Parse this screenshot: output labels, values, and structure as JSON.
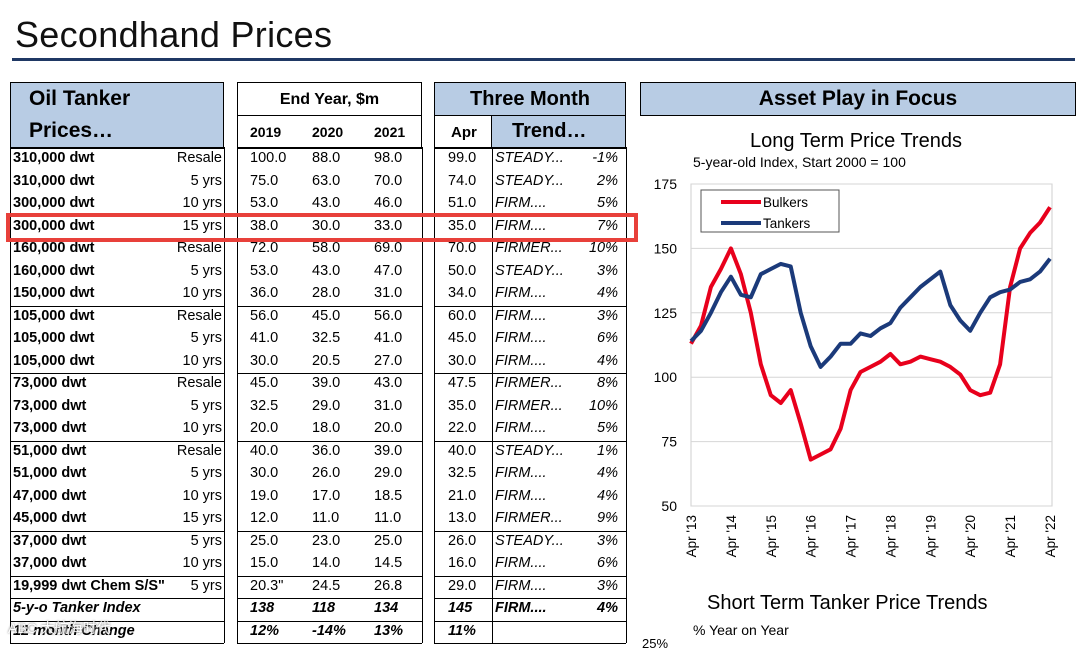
{
  "page": {
    "title": "Secondhand Prices"
  },
  "table": {
    "header_left_line1": "Oil Tanker",
    "header_left_line2": "Prices…",
    "header_end_year": "End Year, $m",
    "header_three_month": "Three Month",
    "col_2019": "2019",
    "col_2020": "2020",
    "col_2021": "2021",
    "col_apr": "Apr",
    "col_trend": "Trend…",
    "rows": [
      {
        "name": "310,000 dwt",
        "age": "Resale",
        "y2019": "100.0",
        "y2020": "88.0",
        "y2021": "98.0",
        "apr": "99.0",
        "trend": "STEADY...",
        "chg": "-1%"
      },
      {
        "name": "310,000 dwt",
        "age": "5 yrs",
        "y2019": "75.0",
        "y2020": "63.0",
        "y2021": "70.0",
        "apr": "74.0",
        "trend": "STEADY...",
        "chg": "2%"
      },
      {
        "name": "300,000 dwt",
        "age": "10 yrs",
        "y2019": "53.0",
        "y2020": "43.0",
        "y2021": "46.0",
        "apr": "51.0",
        "trend": "FIRM....",
        "chg": "5%"
      },
      {
        "name": "300,000 dwt",
        "age": "15 yrs",
        "y2019": "38.0",
        "y2020": "30.0",
        "y2021": "33.0",
        "apr": "35.0",
        "trend": "FIRM....",
        "chg": "7%"
      },
      {
        "name": "160,000 dwt",
        "age": "Resale",
        "y2019": "72.0",
        "y2020": "58.0",
        "y2021": "69.0",
        "apr": "70.0",
        "trend": "FIRMER...",
        "chg": "10%"
      },
      {
        "name": "160,000 dwt",
        "age": "5 yrs",
        "y2019": "53.0",
        "y2020": "43.0",
        "y2021": "47.0",
        "apr": "50.0",
        "trend": "STEADY...",
        "chg": "3%"
      },
      {
        "name": "150,000 dwt",
        "age": "10 yrs",
        "y2019": "36.0",
        "y2020": "28.0",
        "y2021": "31.0",
        "apr": "34.0",
        "trend": "FIRM....",
        "chg": "4%"
      },
      {
        "name": "105,000 dwt",
        "age": "Resale",
        "y2019": "56.0",
        "y2020": "45.0",
        "y2021": "56.0",
        "apr": "60.0",
        "trend": "FIRM....",
        "chg": "3%"
      },
      {
        "name": "105,000 dwt",
        "age": "5 yrs",
        "y2019": "41.0",
        "y2020": "32.5",
        "y2021": "41.0",
        "apr": "45.0",
        "trend": "FIRM....",
        "chg": "6%"
      },
      {
        "name": "105,000 dwt",
        "age": "10 yrs",
        "y2019": "30.0",
        "y2020": "20.5",
        "y2021": "27.0",
        "apr": "30.0",
        "trend": "FIRM....",
        "chg": "4%"
      },
      {
        "name": "73,000 dwt",
        "age": "Resale",
        "y2019": "45.0",
        "y2020": "39.0",
        "y2021": "43.0",
        "apr": "47.5",
        "trend": "FIRMER...",
        "chg": "8%"
      },
      {
        "name": "73,000 dwt",
        "age": "5 yrs",
        "y2019": "32.5",
        "y2020": "29.0",
        "y2021": "31.0",
        "apr": "35.0",
        "trend": "FIRMER...",
        "chg": "10%"
      },
      {
        "name": "73,000 dwt",
        "age": "10 yrs",
        "y2019": "20.0",
        "y2020": "18.0",
        "y2021": "20.0",
        "apr": "22.0",
        "trend": "FIRM....",
        "chg": "5%"
      },
      {
        "name": "51,000 dwt",
        "age": "Resale",
        "y2019": "40.0",
        "y2020": "36.0",
        "y2021": "39.0",
        "apr": "40.0",
        "trend": "STEADY...",
        "chg": "1%"
      },
      {
        "name": "51,000 dwt",
        "age": "5 yrs",
        "y2019": "30.0",
        "y2020": "26.0",
        "y2021": "29.0",
        "apr": "32.5",
        "trend": "FIRM....",
        "chg": "4%"
      },
      {
        "name": "47,000 dwt",
        "age": "10 yrs",
        "y2019": "19.0",
        "y2020": "17.0",
        "y2021": "18.5",
        "apr": "21.0",
        "trend": "FIRM....",
        "chg": "4%"
      },
      {
        "name": "45,000 dwt",
        "age": "15 yrs",
        "y2019": "12.0",
        "y2020": "11.0",
        "y2021": "11.0",
        "apr": "13.0",
        "trend": "FIRMER...",
        "chg": "9%"
      },
      {
        "name": "37,000 dwt",
        "age": "5 yrs",
        "y2019": "25.0",
        "y2020": "23.0",
        "y2021": "25.0",
        "apr": "26.0",
        "trend": "STEADY...",
        "chg": "3%"
      },
      {
        "name": "37,000 dwt",
        "age": "10 yrs",
        "y2019": "15.0",
        "y2020": "14.0",
        "y2021": "14.5",
        "apr": "16.0",
        "trend": "FIRM....",
        "chg": "6%"
      },
      {
        "name": "19,999 dwt Chem S/S\"",
        "age": "5 yrs",
        "y2019": "20.3\"",
        "y2020": "24.5",
        "y2021": "26.8",
        "apr": "29.0",
        "trend": "FIRM....",
        "chg": "3%"
      }
    ],
    "index_row": {
      "name": "5-y-o Tanker Index",
      "y2019": "138",
      "y2020": "118",
      "y2021": "134",
      "apr": "145",
      "trend": "FIRM....",
      "chg": "4%"
    },
    "change_row": {
      "name": "12 month Change",
      "y2019": "12%",
      "y2020": "-14%",
      "y2021": "13%",
      "apr": "11%"
    }
  },
  "focus": {
    "header": "Asset Play in Focus",
    "chart_title": "Long Term Price Trends",
    "chart_subtitle": "5-year-old Index, Start 2000 = 100",
    "chart2_title": "Short Term Tanker Price Trends",
    "chart2_subtitle": "% Year on Year",
    "chart2_first_tick": "25%"
  },
  "watermark": "ABC 大航海时代",
  "colors": {
    "header_fill": "#b8cce4",
    "title_rule": "#1f3864",
    "bulkers": "#e8001c",
    "tankers": "#1b3a7a",
    "highlight": "#e8403a"
  },
  "chart_data": {
    "type": "line",
    "title": "Long Term Price Trends",
    "subtitle": "5-year-old Index, Start 2000 = 100",
    "xlabel": "",
    "ylabel": "",
    "ylim": [
      50,
      175
    ],
    "yticks": [
      "50",
      "75",
      "100",
      "125",
      "150",
      "175"
    ],
    "xticks": [
      "Apr '13",
      "Apr '14",
      "Apr '15",
      "Apr '16",
      "Apr '17",
      "Apr '18",
      "Apr '19",
      "Apr '20",
      "Apr '21",
      "Apr '22"
    ],
    "legend": "top-left",
    "x": [
      2013.25,
      2013.5,
      2013.75,
      2014.0,
      2014.25,
      2014.5,
      2014.75,
      2015.0,
      2015.25,
      2015.5,
      2015.75,
      2016.0,
      2016.25,
      2016.5,
      2016.75,
      2017.0,
      2017.25,
      2017.5,
      2017.75,
      2018.0,
      2018.25,
      2018.5,
      2018.75,
      2019.0,
      2019.25,
      2019.5,
      2019.75,
      2020.0,
      2020.25,
      2020.5,
      2020.75,
      2021.0,
      2021.25,
      2021.5,
      2021.75,
      2022.0,
      2022.25
    ],
    "series": [
      {
        "name": "Bulkers",
        "values": [
          113,
          120,
          135,
          142,
          150,
          140,
          125,
          105,
          93,
          90,
          95,
          82,
          68,
          70,
          72,
          80,
          95,
          102,
          104,
          106,
          109,
          105,
          106,
          108,
          107,
          106,
          104,
          101,
          95,
          93,
          94,
          105,
          135,
          150,
          156,
          160,
          166
        ]
      },
      {
        "name": "Tankers",
        "values": [
          114,
          118,
          125,
          133,
          139,
          132,
          131,
          140,
          142,
          144,
          143,
          125,
          112,
          104,
          108,
          113,
          113,
          117,
          116,
          119,
          121,
          127,
          131,
          135,
          138,
          141,
          128,
          122,
          118,
          125,
          131,
          133,
          134,
          137,
          138,
          141,
          146
        ]
      }
    ]
  }
}
